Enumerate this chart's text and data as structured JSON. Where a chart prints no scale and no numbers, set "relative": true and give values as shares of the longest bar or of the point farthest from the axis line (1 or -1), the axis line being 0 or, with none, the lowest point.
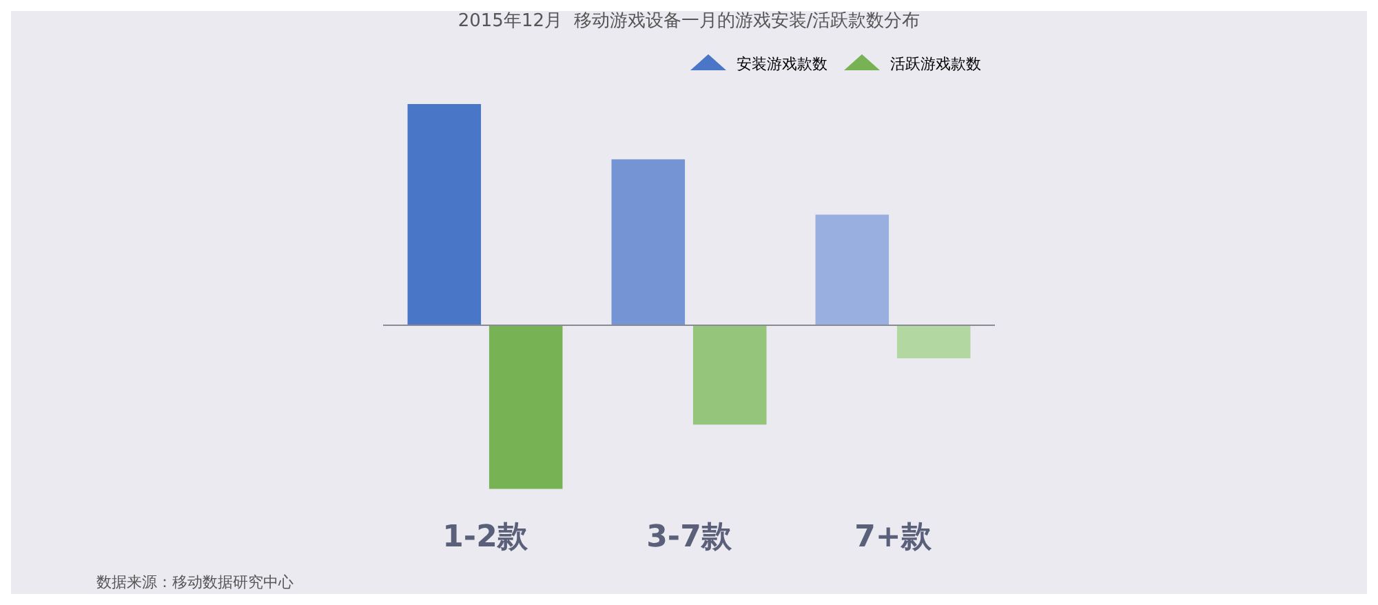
{
  "chart_data": {
    "type": "bar",
    "title": "2015年12月  移动游戏设备一月的游戏安装/活跃款数分布",
    "categories": [
      "1-2款",
      "3-7款",
      "7+款"
    ],
    "relative": true,
    "legend": "top right",
    "grid": false,
    "series": [
      {
        "name": "安装游戏款数",
        "color": "#4a76c8",
        "colors": [
          "#4a76c8",
          "#7594d4",
          "#98afdf"
        ],
        "values": [
          1,
          0.75,
          0.5
        ]
      },
      {
        "name": "活跃游戏款数",
        "color": "#77b255",
        "colors": [
          "#77b255",
          "#94c57b",
          "#b3d7a1"
        ],
        "values": [
          -0.74,
          -0.45,
          -0.15
        ]
      }
    ],
    "annotations": [
      "数据来源：移动数据研究中心"
    ]
  }
}
